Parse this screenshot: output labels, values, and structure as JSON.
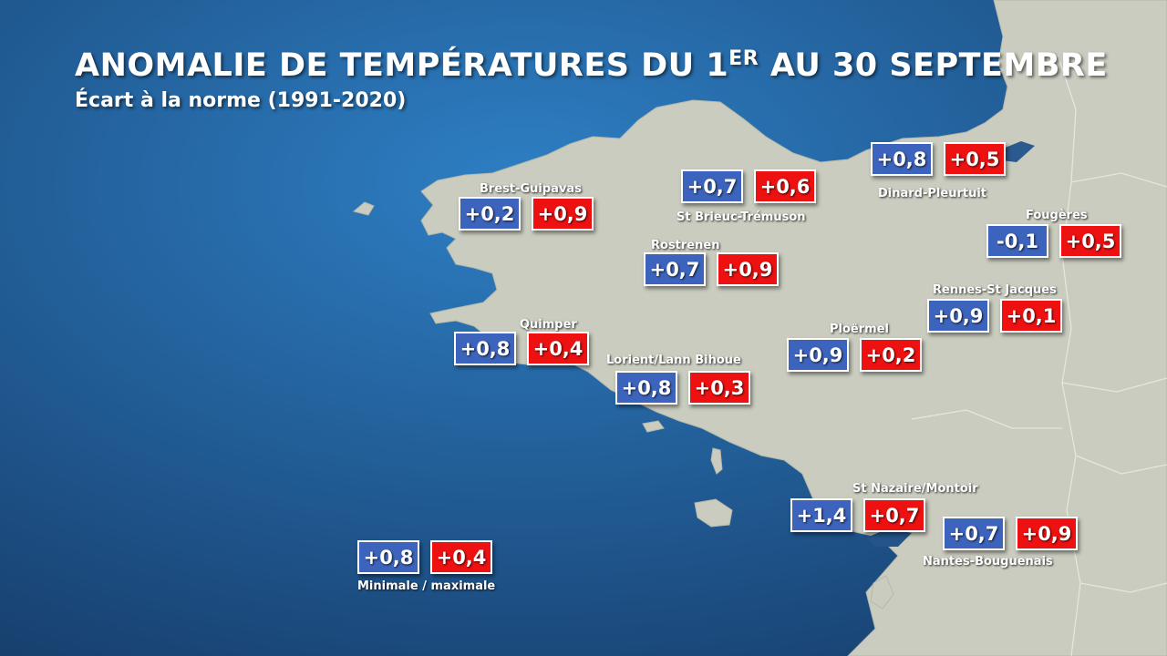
{
  "title_main": "ANOMALIE DE TEMPÉRATURES DU 1",
  "title_sup": "ER",
  "title_rest": " AU 30 SEPTEMBRE",
  "subtitle": "Écart à la norme (1991-2020)",
  "colors": {
    "sea_light": "#2e7fc4",
    "sea_dark": "#173f6e",
    "land": "#c9ccbf",
    "min_box": "#3d64bd",
    "max_box": "#ee1111"
  },
  "stations": [
    {
      "name": "Brest-Guipavas",
      "min": "+0,2",
      "max": "+0,9"
    },
    {
      "name": "St Brieuc-Trémuson",
      "min": "+0,7",
      "max": "+0,6"
    },
    {
      "name": "Dinard-Pleurtuit",
      "min": "+0,8",
      "max": "+0,5"
    },
    {
      "name": "Fougères",
      "min": "-0,1",
      "max": "+0,5"
    },
    {
      "name": "Rostrenen",
      "min": "+0,7",
      "max": "+0,9"
    },
    {
      "name": "Rennes-St Jacques",
      "min": "+0,9",
      "max": "+0,1"
    },
    {
      "name": "Quimper",
      "min": "+0,8",
      "max": "+0,4"
    },
    {
      "name": "Ploërmel",
      "min": "+0,9",
      "max": "+0,2"
    },
    {
      "name": "Lorient/Lann Bihoue",
      "min": "+0,8",
      "max": "+0,3"
    },
    {
      "name": "St Nazaire/Montoir",
      "min": "+1,4",
      "max": "+0,7"
    },
    {
      "name": "Nantes-Bouguenais",
      "min": "+0,7",
      "max": "+0,9"
    }
  ],
  "legend": {
    "min": "+0,8",
    "max": "+0,4",
    "label": "Minimale / maximale"
  }
}
